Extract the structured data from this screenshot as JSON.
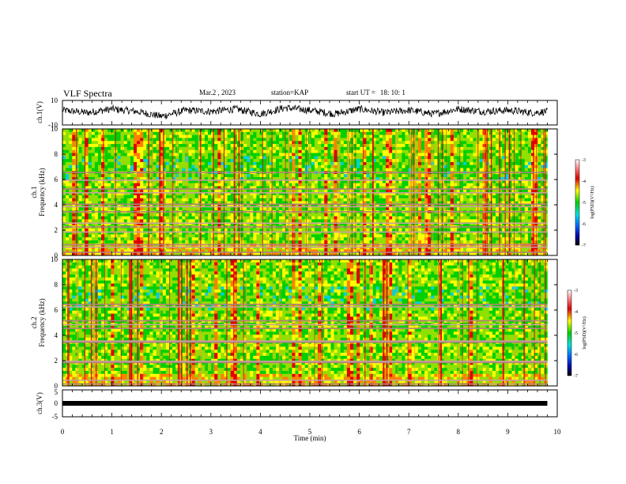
{
  "header": {
    "title": "VLF Spectra",
    "date": "Mar.2 , 2023",
    "station_label": "station=",
    "station": "KAP",
    "start_label": "start UT =",
    "start_time": "18: 10: 1"
  },
  "chart_data": [
    {
      "type": "line",
      "ylabel": "ch.1(V)",
      "ylim": [
        -10,
        10
      ],
      "yticks": [
        "10",
        "-10"
      ],
      "x": [
        0,
        0.5,
        1,
        1.5,
        2,
        2.5,
        3,
        3.5,
        4,
        4.5,
        5,
        5.5,
        6,
        6.5,
        7,
        7.5,
        8,
        8.5,
        9,
        9.5,
        9.8
      ],
      "values": [
        2,
        0,
        3,
        1,
        -3,
        2,
        1,
        3,
        -1,
        4,
        2,
        -1,
        3,
        0,
        2,
        -1,
        3,
        1,
        2,
        0,
        1
      ]
    },
    {
      "type": "heatmap",
      "ylabel_top": "ch.1",
      "ylabel": "Frequency (kHz)",
      "ylim": [
        0,
        10
      ],
      "yticks": [
        "0",
        "2",
        "4",
        "6",
        "8",
        "10"
      ],
      "colorbar": {
        "label": "log(PSD)(V²/Hz)",
        "ticks": [
          "-3",
          "-4",
          "-5",
          "-6",
          "-7"
        ],
        "range": [
          -7,
          -3
        ]
      },
      "bands_khz": [
        0.3,
        0.7,
        0.9,
        1.9,
        2.3,
        2.6,
        3.5,
        3.9,
        4.1,
        5.0,
        5.3,
        6.0,
        6.6
      ]
    },
    {
      "type": "heatmap",
      "ylabel_top": "ch.2",
      "ylabel": "Frequency (kHz)",
      "ylim": [
        0,
        10
      ],
      "yticks": [
        "0",
        "2",
        "4",
        "6",
        "8",
        "10"
      ],
      "colorbar": {
        "label": "log(PSD)(V²/Hz)",
        "ticks": [
          "-3",
          "-4",
          "-5",
          "-6",
          "-7"
        ],
        "range": [
          -7,
          -3
        ]
      },
      "bands_khz": [
        0.2,
        0.5,
        1.9,
        2.0,
        3.5,
        3.6,
        4.6,
        4.9,
        5.2,
        6.3,
        6.5
      ]
    },
    {
      "type": "line",
      "ylabel": "ch.3(V)",
      "ylim": [
        -5,
        5
      ],
      "yticks": [
        "5",
        "0",
        "-5"
      ],
      "x": [
        0,
        9.8
      ],
      "values": [
        0,
        0
      ]
    }
  ],
  "xaxis": {
    "label": "Time (min)",
    "range": [
      0,
      10
    ],
    "ticks": [
      "0",
      "1",
      "2",
      "3",
      "4",
      "5",
      "6",
      "7",
      "8",
      "9",
      "10"
    ]
  }
}
